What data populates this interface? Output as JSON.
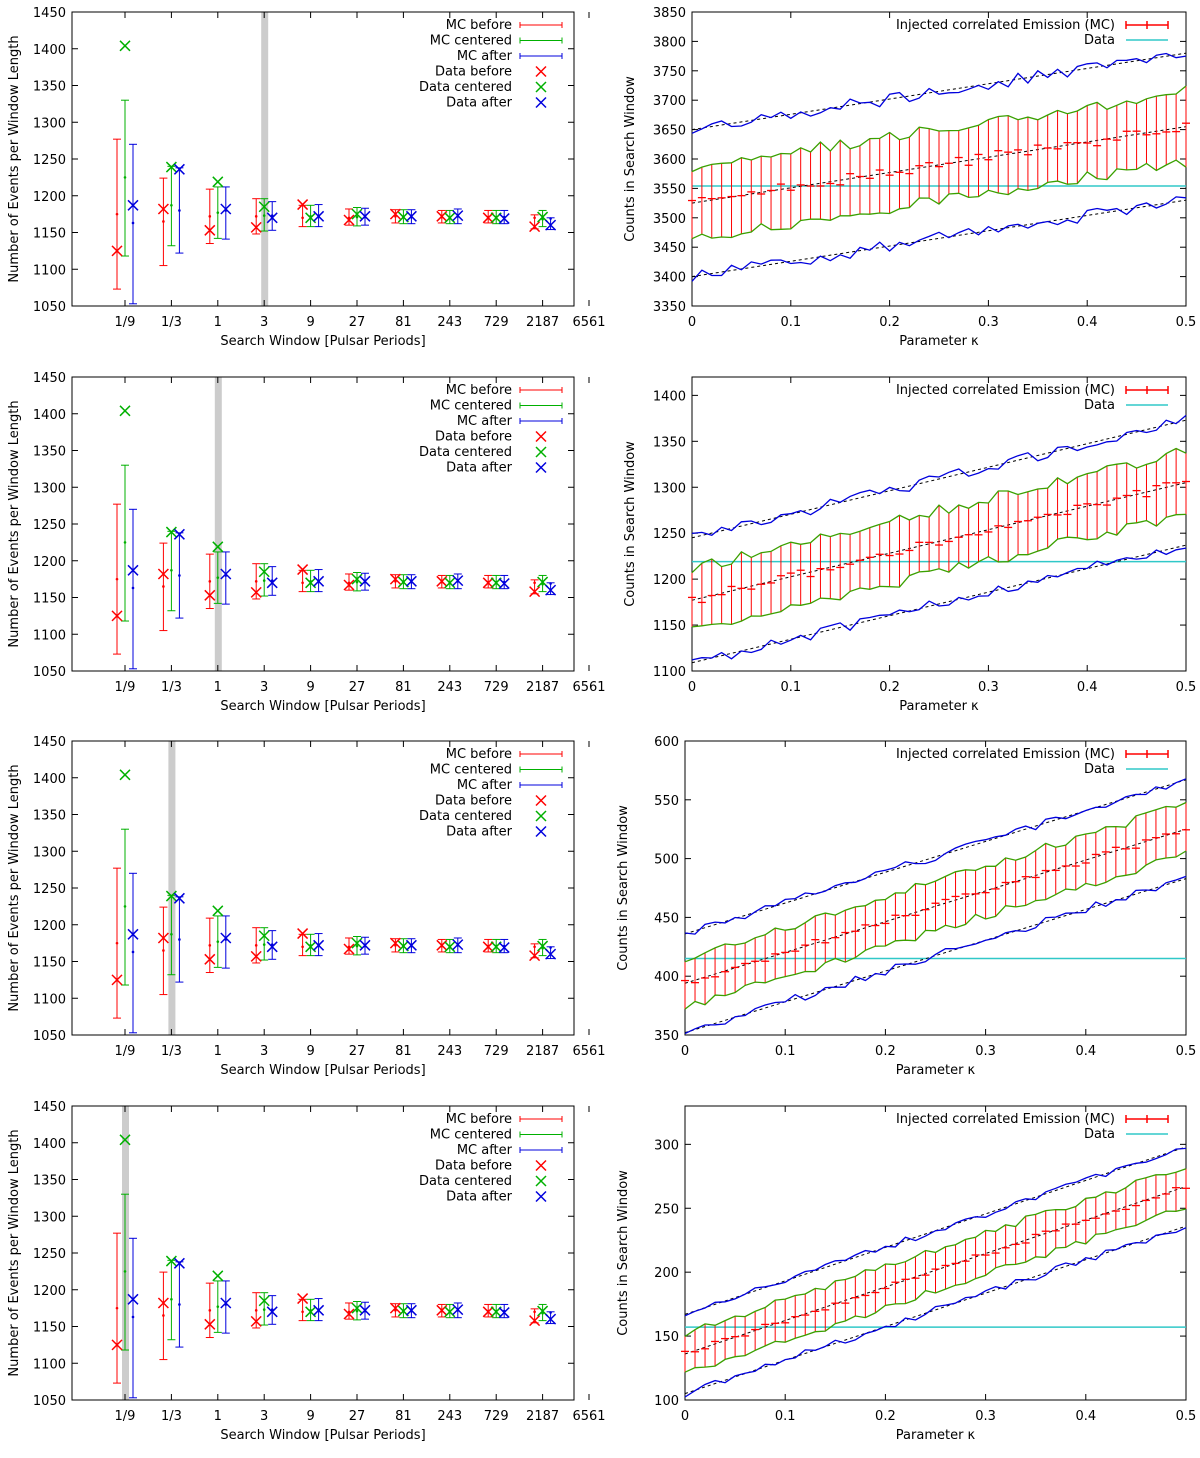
{
  "chart_data": [
    {
      "type": "errorbar-scatter",
      "row": 0,
      "column": "left",
      "title": "",
      "xlabel": "Search Window [Pulsar Periods]",
      "ylabel": "Number of Events per Window Length",
      "ylim": [
        1050,
        1450
      ],
      "yticks": [
        1050,
        1100,
        1150,
        1200,
        1250,
        1300,
        1350,
        1400,
        1450
      ],
      "categories": [
        "1/9",
        "1/3",
        "1",
        "3",
        "9",
        "27",
        "81",
        "243",
        "729",
        "2187",
        "6561"
      ],
      "highlight_category": "3",
      "legend": [
        "MC before",
        "MC centered",
        "MC after",
        "Data before",
        "Data centered",
        "Data after"
      ],
      "colors": {
        "before": "#ff0000",
        "centered": "#00b000",
        "after": "#0000dd",
        "highlight": "#cccccc"
      },
      "mc_series": [
        {
          "name": "MC before",
          "values": [
            1175,
            1165,
            1172,
            1172,
            1170,
            1170,
            1172,
            1171,
            1171,
            1170
          ],
          "lo": [
            1073,
            1105,
            1135,
            1148,
            1158,
            1160,
            1163,
            1163,
            1163,
            1155
          ],
          "hi": [
            1277,
            1224,
            1209,
            1196,
            1187,
            1182,
            1181,
            1180,
            1180,
            1174
          ]
        },
        {
          "name": "MC centered",
          "values": [
            1225,
            1187,
            1177,
            1173,
            1172,
            1171,
            1171,
            1170,
            1171,
            1168
          ],
          "lo": [
            1118,
            1132,
            1142,
            1152,
            1158,
            1159,
            1162,
            1162,
            1162,
            1158
          ],
          "hi": [
            1330,
            1240,
            1212,
            1196,
            1187,
            1184,
            1181,
            1180,
            1180,
            1180
          ]
        },
        {
          "name": "MC after",
          "values": [
            1163,
            1180,
            1180,
            1173,
            1172,
            1171,
            1171,
            1172,
            1171,
            1169
          ],
          "lo": [
            1053,
            1122,
            1141,
            1153,
            1158,
            1160,
            1162,
            1162,
            1162,
            1154
          ],
          "hi": [
            1270,
            1238,
            1212,
            1192,
            1188,
            1183,
            1181,
            1182,
            1180,
            1170
          ]
        }
      ],
      "data_series": [
        {
          "name": "Data before",
          "values": [
            1125,
            1182,
            1153,
            1157,
            1188,
            1167,
            1175,
            1172,
            1170,
            1158
          ]
        },
        {
          "name": "Data centered",
          "values": [
            1404,
            1239,
            1219,
            1185,
            1170,
            1175,
            1171,
            1170,
            1170,
            1171
          ]
        },
        {
          "name": "Data after",
          "values": [
            1187,
            1236,
            1182,
            1170,
            1172,
            1172,
            1172,
            1173,
            1169,
            1160
          ]
        }
      ]
    },
    {
      "type": "errorbar-line",
      "row": 0,
      "column": "right",
      "title": "",
      "xlabel": "Parameter κ",
      "ylabel": "Counts in Search Window",
      "xlim": [
        0,
        0.5
      ],
      "ylim": [
        3350,
        3850
      ],
      "xticks": [
        0,
        0.1,
        0.2,
        0.3,
        0.4,
        0.5
      ],
      "yticks": [
        3350,
        3400,
        3450,
        3500,
        3550,
        3600,
        3650,
        3700,
        3750,
        3800,
        3850
      ],
      "legend": [
        "Injected correlated Emission (MC)",
        "Data"
      ],
      "colors": {
        "mc": "#ff0000",
        "one_sigma": "#3aa000",
        "two_sigma": "#0000dd",
        "data": "#30c8c8"
      },
      "mc_mean_start": 3525,
      "mc_mean_end": 3655,
      "one_sigma": 60,
      "two_sigma": 125,
      "data_value": 3554
    },
    {
      "type": "errorbar-scatter",
      "row": 1,
      "column": "left",
      "title": "",
      "xlabel": "Search Window [Pulsar Periods]",
      "ylabel": "Number of Events per Window Length",
      "ylim": [
        1050,
        1450
      ],
      "yticks": [
        1050,
        1100,
        1150,
        1200,
        1250,
        1300,
        1350,
        1400,
        1450
      ],
      "categories": [
        "1/9",
        "1/3",
        "1",
        "3",
        "9",
        "27",
        "81",
        "243",
        "729",
        "2187",
        "6561"
      ],
      "highlight_category": "1",
      "legend": [
        "MC before",
        "MC centered",
        "MC after",
        "Data before",
        "Data centered",
        "Data after"
      ],
      "colors": {
        "before": "#ff0000",
        "centered": "#00b000",
        "after": "#0000dd",
        "highlight": "#cccccc"
      },
      "mc_series": [
        {
          "name": "MC before",
          "values": [
            1175,
            1165,
            1172,
            1172,
            1170,
            1170,
            1172,
            1171,
            1171,
            1170
          ],
          "lo": [
            1073,
            1105,
            1135,
            1148,
            1158,
            1160,
            1163,
            1163,
            1163,
            1155
          ],
          "hi": [
            1277,
            1224,
            1209,
            1196,
            1187,
            1182,
            1181,
            1180,
            1180,
            1174
          ]
        },
        {
          "name": "MC centered",
          "values": [
            1225,
            1187,
            1177,
            1173,
            1172,
            1171,
            1171,
            1170,
            1171,
            1168
          ],
          "lo": [
            1118,
            1132,
            1142,
            1152,
            1158,
            1159,
            1162,
            1162,
            1162,
            1158
          ],
          "hi": [
            1330,
            1240,
            1212,
            1196,
            1187,
            1184,
            1181,
            1180,
            1180,
            1180
          ]
        },
        {
          "name": "MC after",
          "values": [
            1163,
            1180,
            1180,
            1173,
            1172,
            1171,
            1171,
            1172,
            1171,
            1169
          ],
          "lo": [
            1053,
            1122,
            1141,
            1153,
            1158,
            1160,
            1162,
            1162,
            1162,
            1154
          ],
          "hi": [
            1270,
            1238,
            1212,
            1192,
            1188,
            1183,
            1181,
            1182,
            1180,
            1170
          ]
        }
      ],
      "data_series": [
        {
          "name": "Data before",
          "values": [
            1125,
            1182,
            1153,
            1157,
            1188,
            1167,
            1175,
            1172,
            1170,
            1158
          ]
        },
        {
          "name": "Data centered",
          "values": [
            1404,
            1239,
            1219,
            1185,
            1170,
            1175,
            1171,
            1170,
            1170,
            1171
          ]
        },
        {
          "name": "Data after",
          "values": [
            1187,
            1236,
            1182,
            1170,
            1172,
            1172,
            1172,
            1173,
            1169,
            1160
          ]
        }
      ]
    },
    {
      "type": "errorbar-line",
      "row": 1,
      "column": "right",
      "title": "",
      "xlabel": "Parameter κ",
      "ylabel": "Counts in Search Window",
      "xlim": [
        0,
        0.5
      ],
      "ylim": [
        1100,
        1420
      ],
      "xticks": [
        0,
        0.1,
        0.2,
        0.3,
        0.4,
        0.5
      ],
      "yticks": [
        1100,
        1150,
        1200,
        1250,
        1300,
        1350,
        1400
      ],
      "legend": [
        "Injected correlated Emission (MC)",
        "Data"
      ],
      "colors": {
        "mc": "#ff0000",
        "one_sigma": "#3aa000",
        "two_sigma": "#0000dd",
        "data": "#30c8c8"
      },
      "mc_mean_start": 1177,
      "mc_mean_end": 1305,
      "one_sigma": 34,
      "two_sigma": 68,
      "data_value": 1219
    },
    {
      "type": "errorbar-scatter",
      "row": 2,
      "column": "left",
      "title": "",
      "xlabel": "Search Window [Pulsar Periods]",
      "ylabel": "Number of Events per Window Length",
      "ylim": [
        1050,
        1450
      ],
      "yticks": [
        1050,
        1100,
        1150,
        1200,
        1250,
        1300,
        1350,
        1400,
        1450
      ],
      "categories": [
        "1/9",
        "1/3",
        "1",
        "3",
        "9",
        "27",
        "81",
        "243",
        "729",
        "2187",
        "6561"
      ],
      "highlight_category": "1/3",
      "legend": [
        "MC before",
        "MC centered",
        "MC after",
        "Data before",
        "Data centered",
        "Data after"
      ],
      "colors": {
        "before": "#ff0000",
        "centered": "#00b000",
        "after": "#0000dd",
        "highlight": "#cccccc"
      },
      "mc_series": [
        {
          "name": "MC before",
          "values": [
            1175,
            1165,
            1172,
            1172,
            1170,
            1170,
            1172,
            1171,
            1171,
            1170
          ],
          "lo": [
            1073,
            1105,
            1135,
            1148,
            1158,
            1160,
            1163,
            1163,
            1163,
            1155
          ],
          "hi": [
            1277,
            1224,
            1209,
            1196,
            1187,
            1182,
            1181,
            1180,
            1180,
            1174
          ]
        },
        {
          "name": "MC centered",
          "values": [
            1225,
            1187,
            1177,
            1173,
            1172,
            1171,
            1171,
            1170,
            1171,
            1168
          ],
          "lo": [
            1118,
            1132,
            1142,
            1152,
            1158,
            1159,
            1162,
            1162,
            1162,
            1158
          ],
          "hi": [
            1330,
            1240,
            1212,
            1196,
            1187,
            1184,
            1181,
            1180,
            1180,
            1180
          ]
        },
        {
          "name": "MC after",
          "values": [
            1163,
            1180,
            1180,
            1173,
            1172,
            1171,
            1171,
            1172,
            1171,
            1169
          ],
          "lo": [
            1053,
            1122,
            1141,
            1153,
            1158,
            1160,
            1162,
            1162,
            1162,
            1154
          ],
          "hi": [
            1270,
            1238,
            1212,
            1192,
            1188,
            1183,
            1181,
            1182,
            1180,
            1170
          ]
        }
      ],
      "data_series": [
        {
          "name": "Data before",
          "values": [
            1125,
            1182,
            1153,
            1157,
            1188,
            1167,
            1175,
            1172,
            1170,
            1158
          ]
        },
        {
          "name": "Data centered",
          "values": [
            1404,
            1239,
            1219,
            1185,
            1170,
            1175,
            1171,
            1170,
            1170,
            1171
          ]
        },
        {
          "name": "Data after",
          "values": [
            1187,
            1236,
            1182,
            1170,
            1172,
            1172,
            1172,
            1173,
            1169,
            1160
          ]
        }
      ]
    },
    {
      "type": "errorbar-line",
      "row": 2,
      "column": "right",
      "title": "",
      "xlabel": "Parameter κ",
      "ylabel": "Counts in Search Window",
      "xlim": [
        0,
        0.5
      ],
      "ylim": [
        350,
        600
      ],
      "xticks": [
        0,
        0.1,
        0.2,
        0.3,
        0.4,
        0.5
      ],
      "yticks": [
        350,
        400,
        450,
        500,
        550,
        600
      ],
      "legend": [
        "Injected correlated Emission (MC)",
        "Data"
      ],
      "colors": {
        "mc": "#ff0000",
        "one_sigma": "#3aa000",
        "two_sigma": "#0000dd",
        "data": "#30c8c8"
      },
      "mc_mean_start": 394,
      "mc_mean_end": 525,
      "one_sigma": 21,
      "two_sigma": 42,
      "data_value": 415
    },
    {
      "type": "errorbar-scatter",
      "row": 3,
      "column": "left",
      "title": "",
      "xlabel": "Search Window [Pulsar Periods]",
      "ylabel": "Number of Events per Window Length",
      "ylim": [
        1050,
        1450
      ],
      "yticks": [
        1050,
        1100,
        1150,
        1200,
        1250,
        1300,
        1350,
        1400,
        1450
      ],
      "categories": [
        "1/9",
        "1/3",
        "1",
        "3",
        "9",
        "27",
        "81",
        "243",
        "729",
        "2187",
        "6561"
      ],
      "highlight_category": "1/9",
      "legend": [
        "MC before",
        "MC centered",
        "MC after",
        "Data before",
        "Data centered",
        "Data after"
      ],
      "colors": {
        "before": "#ff0000",
        "centered": "#00b000",
        "after": "#0000dd",
        "highlight": "#cccccc"
      },
      "mc_series": [
        {
          "name": "MC before",
          "values": [
            1175,
            1165,
            1172,
            1172,
            1170,
            1170,
            1172,
            1171,
            1171,
            1170
          ],
          "lo": [
            1073,
            1105,
            1135,
            1148,
            1158,
            1160,
            1163,
            1163,
            1163,
            1155
          ],
          "hi": [
            1277,
            1224,
            1209,
            1196,
            1187,
            1182,
            1181,
            1180,
            1180,
            1174
          ]
        },
        {
          "name": "MC centered",
          "values": [
            1225,
            1187,
            1177,
            1173,
            1172,
            1171,
            1171,
            1170,
            1171,
            1168
          ],
          "lo": [
            1118,
            1132,
            1142,
            1152,
            1158,
            1159,
            1162,
            1162,
            1162,
            1158
          ],
          "hi": [
            1330,
            1240,
            1212,
            1196,
            1187,
            1184,
            1181,
            1180,
            1180,
            1180
          ]
        },
        {
          "name": "MC after",
          "values": [
            1163,
            1180,
            1180,
            1173,
            1172,
            1171,
            1171,
            1172,
            1171,
            1169
          ],
          "lo": [
            1053,
            1122,
            1141,
            1153,
            1158,
            1160,
            1162,
            1162,
            1162,
            1154
          ],
          "hi": [
            1270,
            1238,
            1212,
            1192,
            1188,
            1183,
            1181,
            1182,
            1180,
            1170
          ]
        }
      ],
      "data_series": [
        {
          "name": "Data before",
          "values": [
            1125,
            1182,
            1153,
            1157,
            1188,
            1167,
            1175,
            1172,
            1170,
            1158
          ]
        },
        {
          "name": "Data centered",
          "values": [
            1404,
            1239,
            1219,
            1185,
            1170,
            1175,
            1171,
            1170,
            1170,
            1171
          ]
        },
        {
          "name": "Data after",
          "values": [
            1187,
            1236,
            1182,
            1170,
            1172,
            1172,
            1172,
            1173,
            1169,
            1160
          ]
        }
      ]
    },
    {
      "type": "errorbar-line",
      "row": 3,
      "column": "right",
      "title": "",
      "xlabel": "Parameter κ",
      "ylabel": "Counts in Search Window",
      "xlim": [
        0,
        0.5
      ],
      "ylim": [
        100,
        330
      ],
      "xticks": [
        0,
        0.1,
        0.2,
        0.3,
        0.4,
        0.5
      ],
      "yticks": [
        100,
        150,
        200,
        250,
        300
      ],
      "legend": [
        "Injected correlated Emission (MC)",
        "Data"
      ],
      "colors": {
        "mc": "#ff0000",
        "one_sigma": "#3aa000",
        "two_sigma": "#0000dd",
        "data": "#30c8c8"
      },
      "mc_mean_start": 136,
      "mc_mean_end": 267,
      "one_sigma": 16,
      "two_sigma": 31,
      "data_value": 157
    }
  ]
}
